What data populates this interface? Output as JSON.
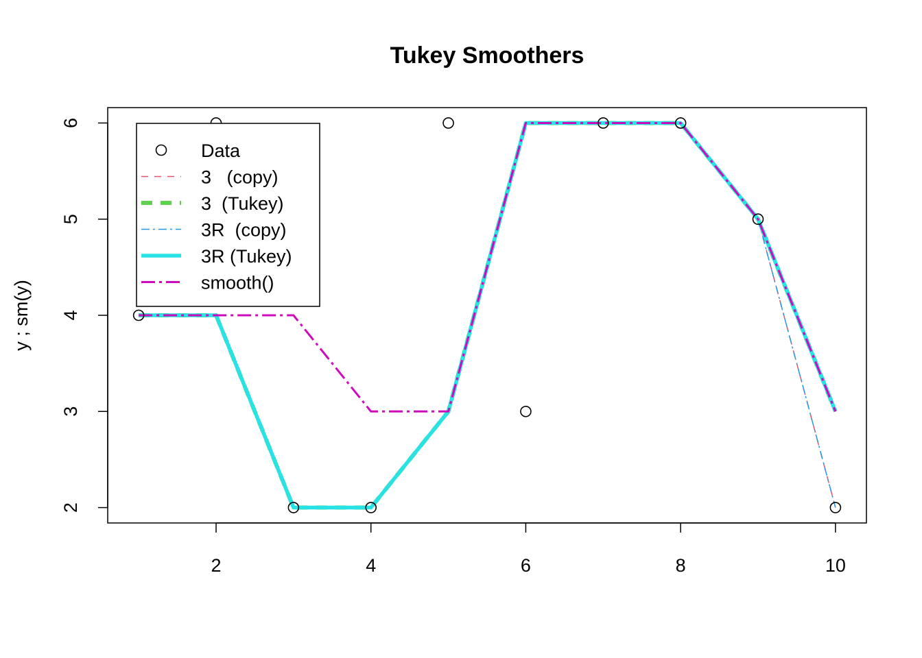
{
  "chart_data": {
    "type": "line",
    "title": "Tukey Smoothers",
    "xlabel": "",
    "ylabel": "y ;  sm(y)",
    "xlim": [
      0.6,
      10.4
    ],
    "ylim": [
      1.84,
      6.16
    ],
    "x_ticks": [
      2,
      4,
      6,
      8,
      10
    ],
    "y_ticks": [
      2,
      3,
      4,
      5,
      6
    ],
    "x_tick_labels": [
      "2",
      "4",
      "6",
      "8",
      "10"
    ],
    "y_tick_labels": [
      "2",
      "3",
      "4",
      "5",
      "6"
    ],
    "grid": false,
    "legend_position": "top-left",
    "x": [
      1,
      2,
      3,
      4,
      5,
      6,
      7,
      8,
      9,
      10
    ],
    "points": {
      "name": "Data",
      "values": [
        4,
        6,
        2,
        2,
        6,
        3,
        6,
        6,
        5,
        2
      ]
    },
    "series": [
      {
        "name": "3   (copy)",
        "values": [
          4,
          4,
          2,
          2,
          3,
          6,
          6,
          6,
          5,
          2
        ],
        "color": "#DF536B",
        "width": 1.5,
        "dash": "10,9"
      },
      {
        "name": "3  (Tukey)",
        "values": [
          4,
          4,
          2,
          2,
          3,
          6,
          6,
          6,
          5,
          3
        ],
        "color": "#61D04F",
        "width": 6,
        "dash": "16,12"
      },
      {
        "name": "3R  (copy)",
        "values": [
          4,
          4,
          2,
          2,
          3,
          6,
          6,
          6,
          5,
          2
        ],
        "color": "#2297E6",
        "width": 1.5,
        "dash": "12,5,3,5"
      },
      {
        "name": "3R (Tukey)",
        "values": [
          4,
          4,
          2,
          2,
          3,
          6,
          6,
          6,
          5,
          3
        ],
        "color": "#28E2E5",
        "width": 5.5,
        "dash": ""
      },
      {
        "name": "smooth()",
        "values": [
          4,
          4,
          4,
          3,
          3,
          6,
          6,
          6,
          5,
          3
        ],
        "color": "#CD0BBC",
        "width": 3,
        "dash": "20,6,4,6"
      }
    ]
  }
}
